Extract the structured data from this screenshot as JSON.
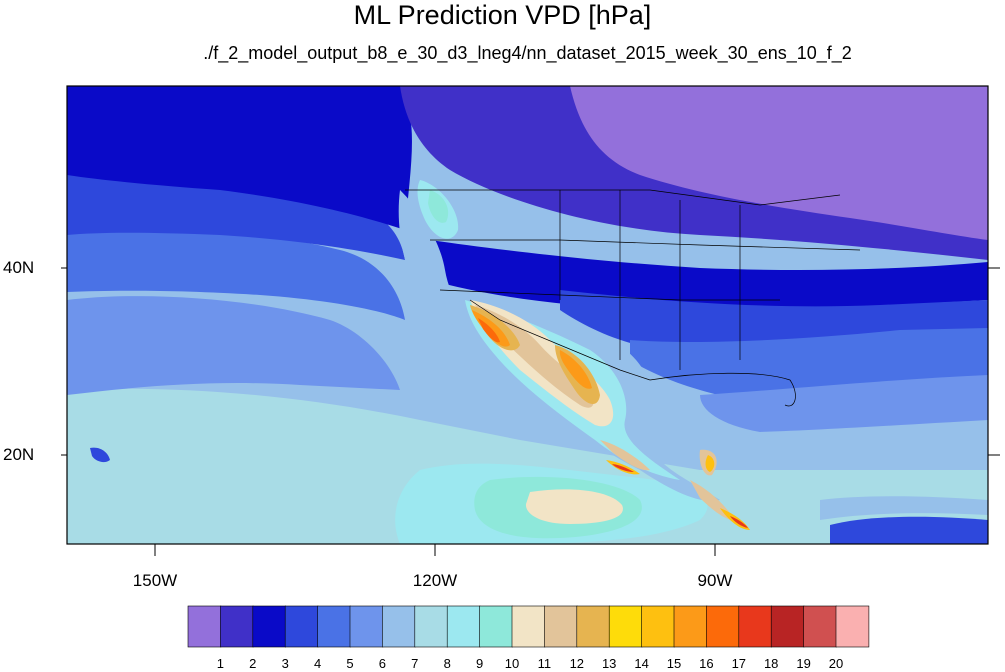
{
  "title": "ML Prediction VPD [hPa]",
  "subtitle": "./f_2_model_output_b8_e_30_d3_lneg4/nn_dataset_2015_week_30_ens_10_f_2",
  "lat_labels": [
    "40N",
    "20N"
  ],
  "lon_labels": [
    "150W",
    "120W",
    "90W"
  ],
  "colorbar": {
    "labels": [
      "1",
      "2",
      "3",
      "4",
      "5",
      "6",
      "7",
      "8",
      "9",
      "10",
      "11",
      "12",
      "13",
      "14",
      "15",
      "16",
      "17",
      "18",
      "19",
      "20"
    ],
    "colors": [
      "#9370db",
      "#4030c8",
      "#0a0ac8",
      "#2e48dc",
      "#4a72e6",
      "#6e94ec",
      "#96c0ea",
      "#a8dce6",
      "#9ce8f0",
      "#8ee8da",
      "#f2e4c6",
      "#e2c49a",
      "#e6b450",
      "#fedc0a",
      "#fec010",
      "#fc9a18",
      "#fc6a0a",
      "#e8381c",
      "#b82424",
      "#d05050",
      "#fab0b0"
    ]
  },
  "map": {
    "region": "Eastern Pacific, North America, Central America",
    "grid": true,
    "colors": {
      "lavender": "#9370db",
      "deep_blue": "#4030c8",
      "navy": "#0a0ac8",
      "royal": "#2e48dc",
      "mid_blue": "#4a72e6",
      "light_blue": "#6e94ec",
      "sky": "#96c0ea",
      "pale_cyan": "#a8dce6",
      "cyan": "#9ce8f0",
      "aqua": "#8ee8da",
      "tan": "#f2e4c6",
      "sand": "#e2c49a",
      "gold": "#e6b450",
      "yellow": "#fedc0a",
      "orange": "#fc9a18",
      "red_orange": "#fc6a0a",
      "red": "#e8381c",
      "dark_red": "#b82424"
    }
  }
}
